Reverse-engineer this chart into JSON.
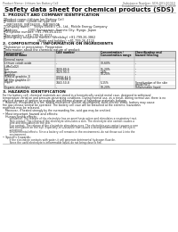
{
  "bg_color": "#ffffff",
  "header_top_left": "Product Name: Lithium Ion Battery Cell",
  "header_top_right": "Substance Number: SDS-001-00010\nEstablishment / Revision: Dec.7.2019",
  "title": "Safety data sheet for chemical products (SDS)",
  "section1_title": "1. PRODUCT AND COMPANY IDENTIFICATION",
  "section1_lines": [
    "・Product name: Lithium Ion Battery Cell",
    "・Product code: Cylindrical-type cell",
    "   INR18650J, INR18650L, INR18650A",
    "・Company name:    Sanyo Electric Co., Ltd., Mobile Energy Company",
    "・Address:          2001 Kamizaizen, Sumoto City, Hyogo, Japan",
    "・Telephone number: +81-799-26-4111",
    "・Fax number: +81-799-26-4123",
    "・Emergency telephone number (Weekday) +81-799-26-3862",
    "                                  (Night and holiday) +81-799-26-4124"
  ],
  "section2_title": "2. COMPOSITION / INFORMATION ON INGREDIENTS",
  "section2_sub": "・Substance or preparation: Preparation",
  "section2_sub2": "・Information about the chemical nature of product:",
  "table_headers": [
    "Component /\nchemical name",
    "CAS number",
    "Concentration /\nConcentration range",
    "Classification and\nhazard labeling"
  ],
  "table_subheader": "General name",
  "section3_title": "3. HAZARDS IDENTIFICATION",
  "section3_para1": "For the battery cell, chemical materials are stored in a hermetically sealed metal case, designed to withstand\ntemperature variation and pressure-generating conditions. During normal use, as a result, during normal use, there is no\nphysical danger of ignition or explosion and thermo-change of hazardous materials leakage.",
  "section3_para2": "   However, if exposed to a fire, added mechanical shocks, decomposed, short-electric shock, battery may cause\nfire gas release ventral be operated. The battery cell case will be breached at the extreme, hazardous\nmaterials may be released.\n   Moreover, if heated strongly by the surrounding fire, acid gas may be emitted.",
  "bullet_important": "• Most important hazard and effects:",
  "human_health": "Human health effects:",
  "human_lines": [
    "   Inhalation: The release of the electrolyte has an anesthesia action and stimulates a respiratory tract.",
    "   Skin contact: The release of the electrolyte stimulates a skin. The electrolyte skin contact causes a",
    "   sore and stimulation on the skin.",
    "   Eye contact: The release of the electrolyte stimulates eyes. The electrolyte eye contact causes a sore",
    "   and stimulation on the eye. Especially, a substance that causes a strong inflammation of the eye is",
    "   contained.",
    "   Environmental effects: Since a battery cell remains in the environment, do not throw out it into the",
    "   environment."
  ],
  "bullet_specific": "• Specific hazards:",
  "specific_lines": [
    "   If the electrolyte contacts with water, it will generate detrimental hydrogen fluoride.",
    "   Since the used electrolyte is inflammable liquid, do not bring close to fire."
  ],
  "table_rows": [
    [
      "Lithium cobalt oxide",
      "-",
      "30-60%",
      "-"
    ],
    [
      "(LiMnCoO2)",
      "",
      "",
      ""
    ],
    [
      "Iron",
      "7439-89-6",
      "15-20%",
      "-"
    ],
    [
      "Aluminum",
      "7429-90-5",
      "2.6%",
      "-"
    ],
    [
      "Graphite",
      "",
      "10-20%",
      "-"
    ],
    [
      "(Kind of graphite-1)",
      "17702-41-5",
      "",
      ""
    ],
    [
      "(Al film graphite-1)",
      "17700-44-2",
      "",
      ""
    ],
    [
      "Copper",
      "7440-50-8",
      "5-15%",
      "Sensitization of the skin\ngroup No.2"
    ],
    [
      "Organic electrolyte",
      "-",
      "10-20%",
      "Inflammable liquid"
    ]
  ]
}
